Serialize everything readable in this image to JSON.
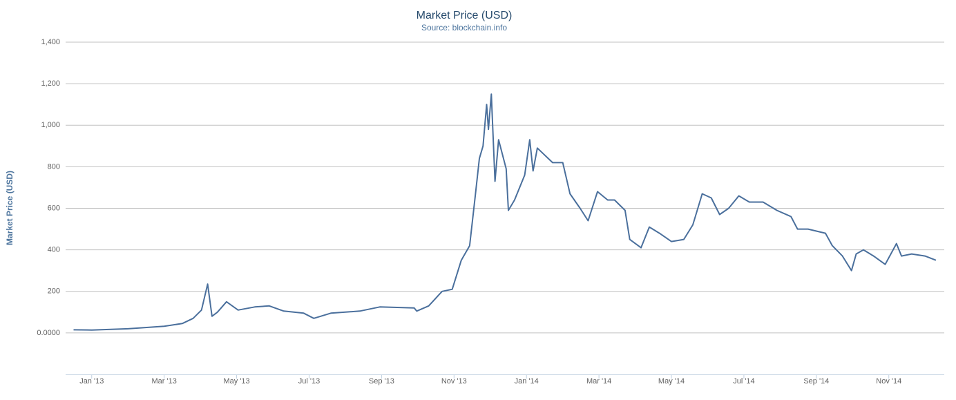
{
  "chart_data": {
    "type": "line",
    "title": "Market Price (USD)",
    "subtitle": "Source: blockchain.info",
    "y_label": "Market Price (USD)",
    "xlim": [
      -0.72,
      23.53
    ],
    "xticks": [
      {
        "value": 0,
        "label": "Jan '13"
      },
      {
        "value": 2,
        "label": "Mar '13"
      },
      {
        "value": 4,
        "label": "May '13"
      },
      {
        "value": 6,
        "label": "Jul '13"
      },
      {
        "value": 8,
        "label": "Sep '13"
      },
      {
        "value": 10,
        "label": "Nov '13"
      },
      {
        "value": 12,
        "label": "Jan '14"
      },
      {
        "value": 14,
        "label": "Mar '14"
      },
      {
        "value": 16,
        "label": "May '14"
      },
      {
        "value": 18,
        "label": "Jul '14"
      },
      {
        "value": 20,
        "label": "Sep '14"
      },
      {
        "value": 22,
        "label": "Nov '14"
      }
    ],
    "ylim": [
      -200,
      1400
    ],
    "yticks": [
      {
        "value": 0,
        "label": "0.0000"
      },
      200,
      400,
      600,
      800,
      {
        "value": 1000,
        "label": "1,000"
      },
      {
        "value": 1200,
        "label": "1,200"
      },
      {
        "value": 1400,
        "label": "1,400"
      }
    ],
    "grid": true,
    "series": [
      {
        "color": "#4a6f9c",
        "x": [
          -0.5,
          0,
          1,
          2,
          2.5,
          2.8,
          3.03,
          3.2,
          3.32,
          3.47,
          3.72,
          4.04,
          4.5,
          4.9,
          5.3,
          5.85,
          6.13,
          6.6,
          7.4,
          7.95,
          8.9,
          8.97,
          9.3,
          9.67,
          9.95,
          10.2,
          10.43,
          10.58,
          10.7,
          10.8,
          10.9,
          10.95,
          11.03,
          11.13,
          11.23,
          11.44,
          11.5,
          11.67,
          11.95,
          12.09,
          12.18,
          12.3,
          12.72,
          13.0,
          13.2,
          13.48,
          13.7,
          13.96,
          14.24,
          14.43,
          14.72,
          14.85,
          15.16,
          15.39,
          15.67,
          16.0,
          16.34,
          16.59,
          16.85,
          17.1,
          17.33,
          17.58,
          17.86,
          18.15,
          18.53,
          18.91,
          19.3,
          19.48,
          19.77,
          20.25,
          20.44,
          20.72,
          20.97,
          21.1,
          21.3,
          21.58,
          21.9,
          22.21,
          22.35,
          22.63,
          23.0,
          23.3
        ],
        "values": [
          15,
          14,
          20,
          32,
          45,
          70,
          110,
          235,
          80,
          100,
          150,
          110,
          125,
          130,
          105,
          95,
          70,
          95,
          105,
          125,
          120,
          105,
          130,
          200,
          210,
          350,
          420,
          650,
          840,
          900,
          1100,
          980,
          1150,
          730,
          930,
          790,
          590,
          640,
          760,
          930,
          780,
          890,
          820,
          820,
          670,
          600,
          540,
          680,
          640,
          640,
          590,
          450,
          410,
          510,
          480,
          440,
          450,
          520,
          670,
          650,
          570,
          600,
          660,
          630,
          630,
          590,
          560,
          500,
          500,
          480,
          420,
          370,
          300,
          380,
          400,
          370,
          330,
          430,
          370,
          380,
          370,
          350
        ]
      }
    ]
  }
}
